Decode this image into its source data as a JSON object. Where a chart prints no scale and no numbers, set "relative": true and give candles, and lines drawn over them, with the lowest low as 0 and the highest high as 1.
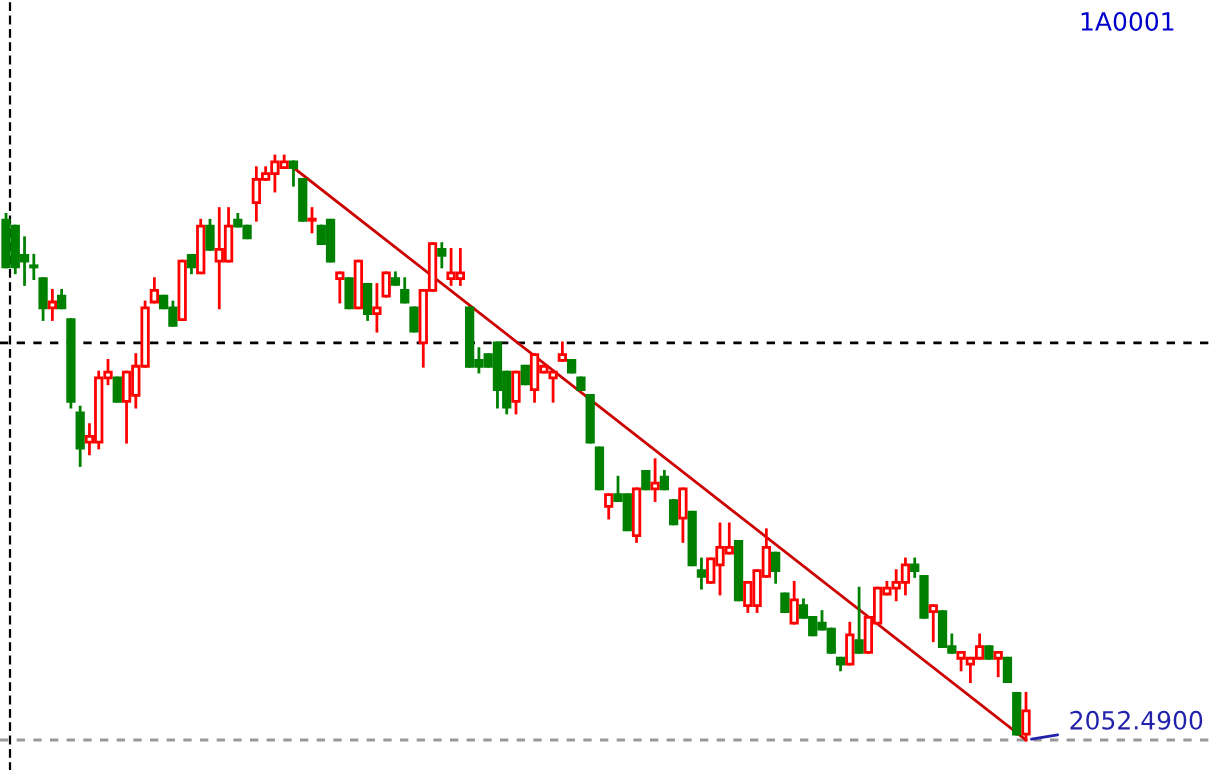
{
  "chart_data": {
    "type": "candlestick",
    "title": "1A0001",
    "relative": true,
    "categories": [
      null,
      null,
      null,
      null,
      null,
      null,
      null,
      null,
      null,
      null,
      null,
      null,
      null,
      null,
      null,
      null,
      null,
      null,
      null,
      null,
      null,
      null,
      null,
      null,
      null,
      null,
      null,
      null,
      null,
      null,
      null,
      null,
      null,
      null,
      null,
      null,
      null,
      null,
      null,
      null,
      null,
      null,
      null,
      null,
      null,
      null,
      null,
      null,
      null,
      null,
      null,
      null,
      null,
      null,
      null,
      null,
      null,
      null,
      null,
      null,
      null,
      null,
      null,
      null,
      null,
      null,
      null,
      null,
      null,
      null,
      null,
      null,
      null,
      null,
      null,
      null,
      null,
      null,
      null,
      null,
      null,
      null,
      null,
      null,
      null,
      null,
      null,
      null,
      null,
      null,
      null,
      null,
      null,
      null,
      null,
      null,
      null,
      null,
      null,
      null,
      null,
      null,
      null,
      null,
      null,
      null,
      null,
      null,
      null,
      null,
      null
    ],
    "ohlc": [
      [
        0.89,
        0.9,
        0.81,
        0.81
      ],
      [
        0.88,
        0.88,
        0.8,
        0.81
      ],
      [
        0.83,
        0.86,
        0.78,
        0.82
      ],
      [
        0.81,
        0.83,
        0.79,
        0.81
      ],
      [
        0.79,
        0.79,
        0.72,
        0.74
      ],
      [
        0.74,
        0.77,
        0.72,
        0.75
      ],
      [
        0.76,
        0.77,
        0.74,
        0.74
      ],
      [
        0.72,
        0.72,
        0.57,
        0.58
      ],
      [
        0.56,
        0.57,
        0.47,
        0.5
      ],
      [
        0.51,
        0.54,
        0.49,
        0.52
      ],
      [
        0.51,
        0.63,
        0.5,
        0.62
      ],
      [
        0.62,
        0.65,
        0.61,
        0.63
      ],
      [
        0.62,
        0.62,
        0.58,
        0.58
      ],
      [
        0.58,
        0.63,
        0.51,
        0.63
      ],
      [
        0.59,
        0.66,
        0.57,
        0.64
      ],
      [
        0.64,
        0.75,
        0.64,
        0.74
      ],
      [
        0.75,
        0.79,
        0.75,
        0.77
      ],
      [
        0.76,
        0.76,
        0.74,
        0.74
      ],
      [
        0.74,
        0.75,
        0.71,
        0.71
      ],
      [
        0.72,
        0.82,
        0.72,
        0.82
      ],
      [
        0.83,
        0.83,
        0.8,
        0.81
      ],
      [
        0.8,
        0.89,
        0.8,
        0.88
      ],
      [
        0.88,
        0.89,
        0.84,
        0.84
      ],
      [
        0.82,
        0.91,
        0.74,
        0.84
      ],
      [
        0.82,
        0.91,
        0.82,
        0.88
      ],
      [
        0.89,
        0.9,
        0.88,
        0.88
      ],
      [
        0.88,
        0.88,
        0.86,
        0.86
      ],
      [
        0.92,
        0.98,
        0.89,
        0.96
      ],
      [
        0.96,
        0.98,
        0.96,
        0.97
      ],
      [
        0.97,
        1.0,
        0.94,
        0.99
      ],
      [
        0.98,
        1.0,
        0.98,
        0.99
      ],
      [
        0.99,
        0.99,
        0.95,
        0.98
      ],
      [
        0.96,
        0.96,
        0.89,
        0.89
      ],
      [
        0.89,
        0.91,
        0.87,
        0.89
      ],
      [
        0.88,
        0.88,
        0.85,
        0.85
      ],
      [
        0.89,
        0.89,
        0.82,
        0.82
      ],
      [
        0.79,
        0.8,
        0.75,
        0.8
      ],
      [
        0.79,
        0.79,
        0.74,
        0.74
      ],
      [
        0.74,
        0.82,
        0.74,
        0.82
      ],
      [
        0.78,
        0.78,
        0.72,
        0.73
      ],
      [
        0.73,
        0.78,
        0.7,
        0.74
      ],
      [
        0.76,
        0.8,
        0.76,
        0.8
      ],
      [
        0.79,
        0.8,
        0.78,
        0.78
      ],
      [
        0.77,
        0.79,
        0.75,
        0.75
      ],
      [
        0.74,
        0.74,
        0.7,
        0.7
      ],
      [
        0.68,
        0.77,
        0.64,
        0.77
      ],
      [
        0.77,
        0.85,
        0.77,
        0.85
      ],
      [
        0.84,
        0.85,
        0.81,
        0.83
      ],
      [
        0.79,
        0.84,
        0.78,
        0.8
      ],
      [
        0.79,
        0.84,
        0.78,
        0.8
      ],
      [
        0.74,
        0.74,
        0.64,
        0.64
      ],
      [
        0.65,
        0.67,
        0.63,
        0.64
      ],
      [
        0.66,
        0.66,
        0.64,
        0.64
      ],
      [
        0.68,
        0.68,
        0.57,
        0.6
      ],
      [
        0.63,
        0.63,
        0.56,
        0.57
      ],
      [
        0.58,
        0.63,
        0.56,
        0.63
      ],
      [
        0.64,
        0.64,
        0.61,
        0.61
      ],
      [
        0.6,
        0.66,
        0.58,
        0.66
      ],
      [
        0.63,
        0.64,
        0.63,
        0.64
      ],
      [
        0.62,
        0.63,
        0.58,
        0.63
      ],
      [
        0.65,
        0.68,
        0.65,
        0.66
      ],
      [
        0.65,
        0.65,
        0.63,
        0.63
      ],
      [
        0.62,
        0.62,
        0.6,
        0.6
      ],
      [
        0.59,
        0.59,
        0.51,
        0.51
      ],
      [
        0.5,
        0.5,
        0.43,
        0.43
      ],
      [
        0.4,
        0.42,
        0.38,
        0.42
      ],
      [
        0.42,
        0.45,
        0.41,
        0.41
      ],
      [
        0.42,
        0.42,
        0.36,
        0.36
      ],
      [
        0.35,
        0.43,
        0.34,
        0.43
      ],
      [
        0.46,
        0.46,
        0.43,
        0.43
      ],
      [
        0.43,
        0.48,
        0.41,
        0.44
      ],
      [
        0.45,
        0.46,
        0.43,
        0.43
      ],
      [
        0.41,
        0.41,
        0.37,
        0.37
      ],
      [
        0.38,
        0.43,
        0.34,
        0.43
      ],
      [
        0.39,
        0.39,
        0.3,
        0.3
      ],
      [
        0.29,
        0.31,
        0.26,
        0.28
      ],
      [
        0.27,
        0.31,
        0.27,
        0.31
      ],
      [
        0.3,
        0.37,
        0.25,
        0.33
      ],
      [
        0.32,
        0.37,
        0.32,
        0.33
      ],
      [
        0.34,
        0.34,
        0.24,
        0.24
      ],
      [
        0.23,
        0.27,
        0.22,
        0.27
      ],
      [
        0.23,
        0.29,
        0.22,
        0.29
      ],
      [
        0.28,
        0.36,
        0.28,
        0.33
      ],
      [
        0.32,
        0.32,
        0.27,
        0.29
      ],
      [
        0.25,
        0.25,
        0.22,
        0.22
      ],
      [
        0.2,
        0.27,
        0.2,
        0.24
      ],
      [
        0.23,
        0.24,
        0.21,
        0.21
      ],
      [
        0.21,
        0.21,
        0.18,
        0.18
      ],
      [
        0.2,
        0.22,
        0.19,
        0.19
      ],
      [
        0.19,
        0.19,
        0.15,
        0.15
      ],
      [
        0.14,
        0.14,
        0.12,
        0.13
      ],
      [
        0.13,
        0.2,
        0.13,
        0.18
      ],
      [
        0.17,
        0.26,
        0.15,
        0.15
      ],
      [
        0.15,
        0.21,
        0.15,
        0.21
      ],
      [
        0.2,
        0.26,
        0.2,
        0.26
      ],
      [
        0.25,
        0.27,
        0.25,
        0.26
      ],
      [
        0.26,
        0.29,
        0.24,
        0.27
      ],
      [
        0.27,
        0.31,
        0.25,
        0.3
      ],
      [
        0.3,
        0.31,
        0.28,
        0.29
      ],
      [
        0.28,
        0.28,
        0.21,
        0.21
      ],
      [
        0.22,
        0.23,
        0.17,
        0.23
      ],
      [
        0.22,
        0.22,
        0.16,
        0.16
      ],
      [
        0.16,
        0.18,
        0.15,
        0.15
      ],
      [
        0.14,
        0.15,
        0.12,
        0.15
      ],
      [
        0.13,
        0.14,
        0.1,
        0.14
      ],
      [
        0.14,
        0.18,
        0.14,
        0.16
      ],
      [
        0.16,
        0.16,
        0.14,
        0.14
      ],
      [
        0.14,
        0.15,
        0.11,
        0.15
      ],
      [
        0.14,
        0.14,
        0.1,
        0.1
      ],
      [
        0.08,
        0.08,
        0.01,
        0.01
      ],
      [
        0.01,
        0.08,
        0.0,
        0.05
      ]
    ],
    "colors": [
      "#008000",
      "#008000",
      "#008000",
      "#008000",
      "#008000",
      "#ff0000",
      "#008000",
      "#008000",
      "#008000",
      "#ff0000",
      "#ff0000",
      "#ff0000",
      "#008000",
      "#ff0000",
      "#ff0000",
      "#ff0000",
      "#ff0000",
      "#008000",
      "#008000",
      "#ff0000",
      "#008000",
      "#ff0000",
      "#008000",
      "#ff0000",
      "#ff0000",
      "#008000",
      "#008000",
      "#ff0000",
      "#ff0000",
      "#ff0000",
      "#ff0000",
      "#008000",
      "#008000",
      "#ff0000",
      "#008000",
      "#008000",
      "#ff0000",
      "#008000",
      "#ff0000",
      "#008000",
      "#ff0000",
      "#ff0000",
      "#008000",
      "#008000",
      "#008000",
      "#ff0000",
      "#ff0000",
      "#008000",
      "#ff0000",
      "#ff0000",
      "#008000",
      "#008000",
      "#008000",
      "#008000",
      "#008000",
      "#ff0000",
      "#008000",
      "#ff0000",
      "#ff0000",
      "#ff0000",
      "#ff0000",
      "#008000",
      "#008000",
      "#008000",
      "#008000",
      "#ff0000",
      "#008000",
      "#008000",
      "#ff0000",
      "#008000",
      "#ff0000",
      "#008000",
      "#008000",
      "#ff0000",
      "#008000",
      "#008000",
      "#ff0000",
      "#ff0000",
      "#ff0000",
      "#008000",
      "#ff0000",
      "#ff0000",
      "#ff0000",
      "#008000",
      "#008000",
      "#ff0000",
      "#008000",
      "#008000",
      "#008000",
      "#008000",
      "#008000",
      "#ff0000",
      "#008000",
      "#ff0000",
      "#ff0000",
      "#ff0000",
      "#ff0000",
      "#ff0000",
      "#008000",
      "#008000",
      "#ff0000",
      "#008000",
      "#008000",
      "#ff0000",
      "#ff0000",
      "#ff0000",
      "#008000",
      "#ff0000",
      "#008000",
      "#008000",
      "#ff0000"
    ],
    "series": [
      {
        "type": "line",
        "color": "#cc0000",
        "values": [
          null,
          null,
          null,
          null,
          null,
          null,
          null,
          null,
          null,
          null,
          null,
          null,
          null,
          null,
          null,
          null,
          null,
          null,
          null,
          null,
          null,
          null,
          null,
          null,
          null,
          null,
          null,
          null,
          null,
          null,
          null,
          0.98,
          null,
          null,
          null,
          null,
          null,
          null,
          null,
          null,
          null,
          null,
          null,
          null,
          null,
          null,
          null,
          null,
          null,
          null,
          null,
          null,
          null,
          null,
          null,
          null,
          null,
          null,
          null,
          null,
          null,
          null,
          null,
          null,
          null,
          null,
          null,
          null,
          null,
          null,
          null,
          null,
          null,
          null,
          null,
          null,
          null,
          null,
          null,
          null,
          null,
          null,
          null,
          null,
          null,
          null,
          null,
          null,
          null,
          null,
          null,
          null,
          null,
          null,
          null,
          null,
          null,
          null,
          null,
          null,
          null,
          null,
          null,
          null,
          null,
          null,
          null,
          null,
          null,
          null,
          0.0
        ]
      }
    ],
    "ref_lines": [
      {
        "axis": "y",
        "value": 0.68,
        "color": "#000000",
        "line_style": "dashed"
      },
      {
        "axis": "y",
        "value": 0.0,
        "color": "#999999",
        "line_style": "dashed"
      }
    ],
    "annotations": [
      {
        "text": "2052.4900",
        "y": 0.0
      }
    ],
    "grid": false,
    "legend": false
  }
}
